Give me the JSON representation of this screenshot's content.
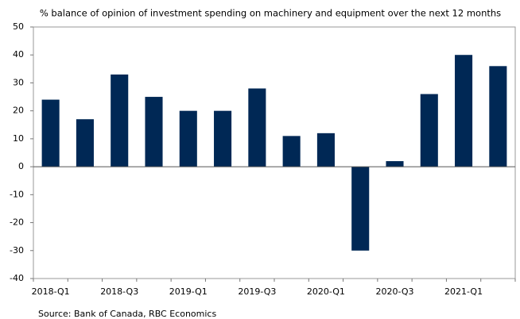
{
  "chart_data": {
    "type": "bar",
    "subtitle": "% balance of opinion of investment spending on machinery and equipment over the next 12 months",
    "source": "Source:  Bank of Canada, RBC Economics",
    "categories": [
      "2018-Q1",
      null,
      "2018-Q3",
      null,
      "2019-Q1",
      null,
      "2019-Q3",
      null,
      "2020-Q1",
      null,
      "2020-Q3",
      null,
      "2021-Q1",
      null
    ],
    "values": [
      24,
      17,
      33,
      25,
      20,
      20,
      28,
      11,
      12,
      -30,
      2,
      26,
      40,
      36
    ],
    "color": "#002855",
    "ylim": [
      -40,
      50
    ],
    "yticks": [
      -40,
      -30,
      -20,
      -10,
      0,
      10,
      20,
      30,
      40,
      50
    ],
    "grid": false
  }
}
